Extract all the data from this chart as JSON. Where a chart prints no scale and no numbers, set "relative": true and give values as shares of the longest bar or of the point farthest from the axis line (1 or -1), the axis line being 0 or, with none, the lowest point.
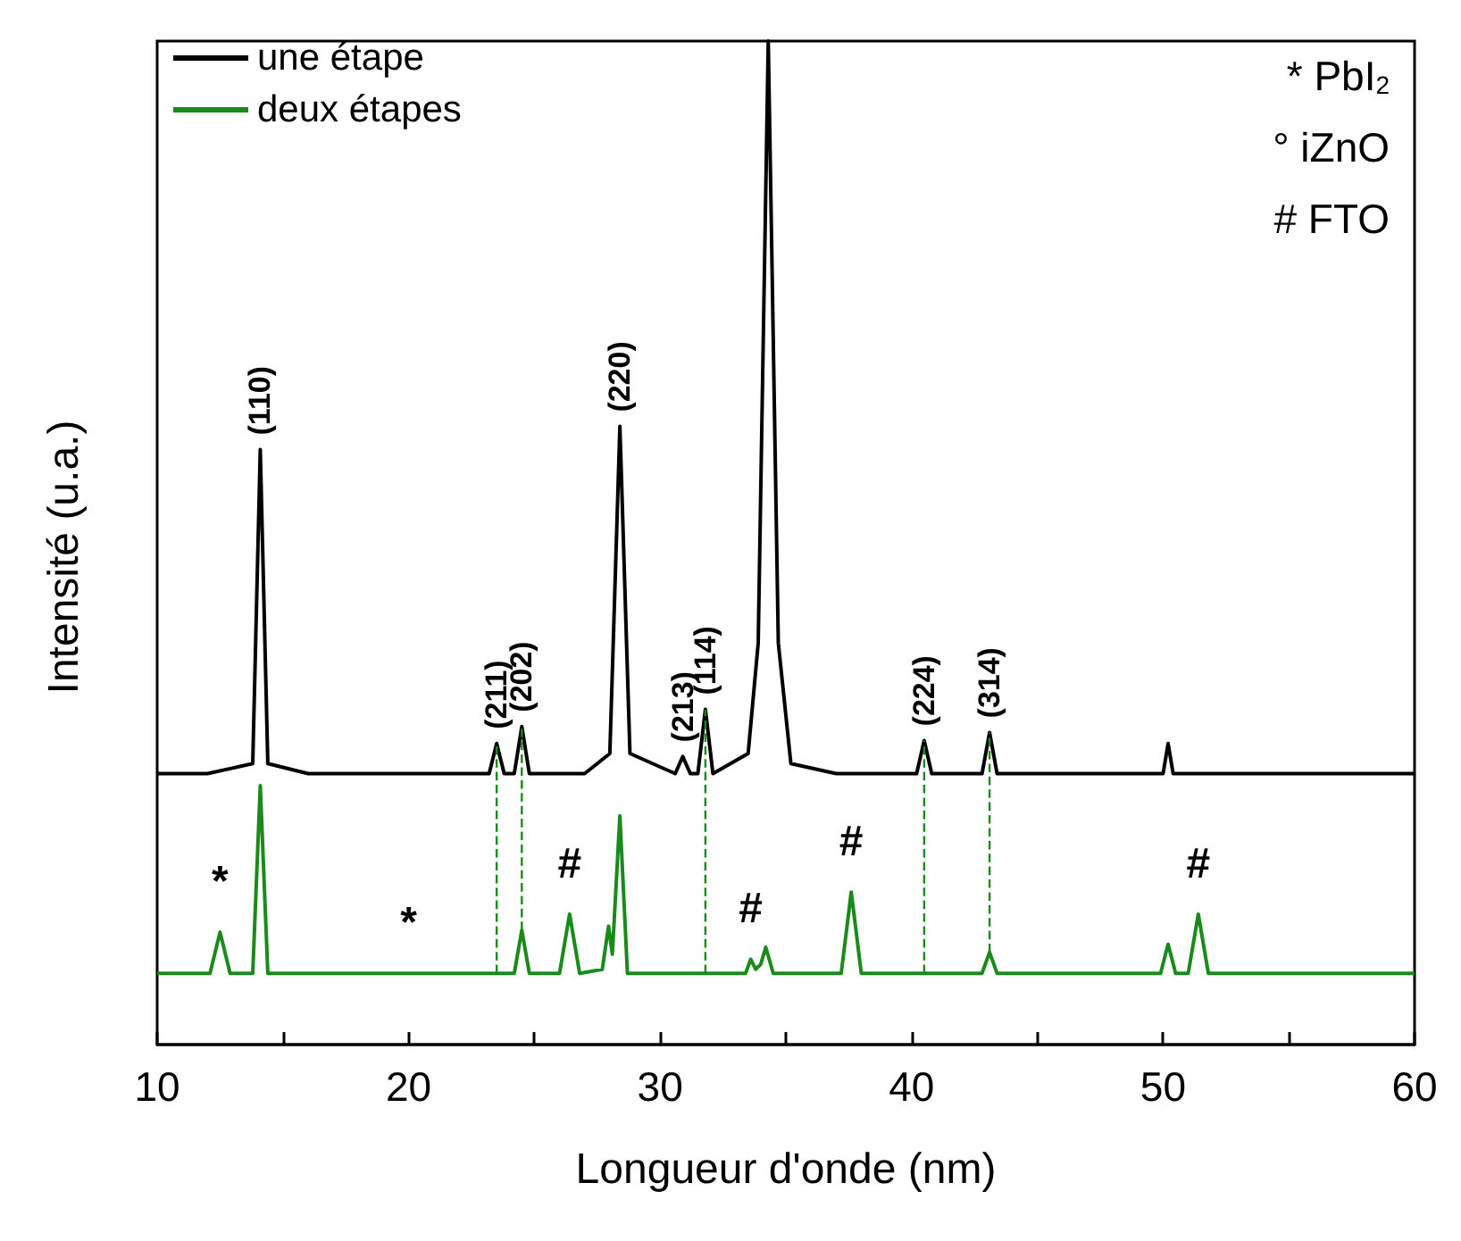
{
  "chart_data": {
    "type": "line",
    "relative": true,
    "xlabel": "Longueur d'onde (nm)",
    "ylabel": "Intensité (u.a.)",
    "xlim": [
      10,
      60
    ],
    "xticks": [
      10,
      {
        "value": 15,
        "label": null
      },
      20,
      {
        "value": 25,
        "label": null
      },
      30,
      {
        "value": 35,
        "label": null
      },
      40,
      {
        "value": 45,
        "label": null
      },
      50,
      {
        "value": 55,
        "label": null
      },
      60
    ],
    "tick_labels": "x",
    "legend": "top left",
    "grid": false,
    "marker": "none",
    "line_style": "solid",
    "series": [
      {
        "name": "une étape",
        "color": "#000000",
        "x": [
          10,
          12,
          13.8,
          14.1,
          14.4,
          16,
          20,
          23.2,
          23.5,
          23.8,
          24.2,
          24.5,
          24.8,
          27,
          28.0,
          28.4,
          28.8,
          30.6,
          30.9,
          31.2,
          31.5,
          31.8,
          32.1,
          33.5,
          33.9,
          34.3,
          34.7,
          35.2,
          37,
          40.2,
          40.5,
          40.8,
          42.8,
          43.1,
          43.4,
          47,
          50,
          50.2,
          50.4,
          55,
          60
        ],
        "values": [
          0.27,
          0.27,
          0.28,
          0.593,
          0.28,
          0.27,
          0.27,
          0.27,
          0.3,
          0.27,
          0.27,
          0.317,
          0.27,
          0.27,
          0.29,
          0.616,
          0.29,
          0.27,
          0.287,
          0.27,
          0.27,
          0.334,
          0.27,
          0.29,
          0.4,
          1,
          0.4,
          0.28,
          0.27,
          0.27,
          0.303,
          0.27,
          0.27,
          0.311,
          0.27,
          0.27,
          0.27,
          0.3,
          0.27,
          0.27,
          0.27
        ]
      },
      {
        "name": "deux étapes",
        "color": "#1a8a1a",
        "x": [
          10,
          12.1,
          12.5,
          12.9,
          13.8,
          14.1,
          14.4,
          18,
          20,
          24.2,
          24.5,
          24.8,
          26.0,
          26.4,
          26.8,
          27.7,
          27.95,
          28.1,
          28.4,
          28.7,
          33.4,
          33.6,
          33.8,
          34.0,
          34.2,
          34.5,
          37.2,
          37.6,
          38.0,
          42.8,
          43.1,
          43.4,
          49.9,
          50.2,
          50.5,
          51.0,
          51.4,
          51.8,
          60
        ],
        "values": [
          0.071,
          0.071,
          0.112,
          0.071,
          0.071,
          0.258,
          0.071,
          0.071,
          0.071,
          0.071,
          0.114,
          0.071,
          0.071,
          0.13,
          0.071,
          0.075,
          0.118,
          0.09,
          0.228,
          0.071,
          0.071,
          0.085,
          0.075,
          0.08,
          0.097,
          0.071,
          0.071,
          0.152,
          0.071,
          0.071,
          0.092,
          0.071,
          0.071,
          0.1,
          0.071,
          0.071,
          0.13,
          0.071,
          0.071
        ]
      }
    ],
    "ref_lines": [
      {
        "axis": "x",
        "value": 23.5,
        "color": "#1a8a1a",
        "line_style": "dashed"
      },
      {
        "axis": "x",
        "value": 24.5,
        "color": "#1a8a1a",
        "line_style": "dashed"
      },
      {
        "axis": "x",
        "value": 31.8,
        "color": "#1a8a1a",
        "line_style": "dashed"
      },
      {
        "axis": "x",
        "value": 40.5,
        "color": "#1a8a1a",
        "line_style": "dashed"
      },
      {
        "axis": "x",
        "value": 43.1,
        "color": "#1a8a1a",
        "line_style": "dashed"
      }
    ],
    "annotations": [
      {
        "text": "(110)",
        "x": 14.1,
        "y": 0.593
      },
      {
        "text": "(211)",
        "x": 23.5,
        "y": 0.3
      },
      {
        "text": "(202)",
        "x": 24.5,
        "y": 0.317
      },
      {
        "text": "(220)",
        "x": 28.4,
        "y": 0.616
      },
      {
        "text": "(213)",
        "x": 30.9,
        "y": 0.287
      },
      {
        "text": "(114)",
        "x": 31.8,
        "y": 0.334
      },
      {
        "text": "(224)",
        "x": 40.5,
        "y": 0.303
      },
      {
        "text": "(314)",
        "x": 43.1,
        "y": 0.311
      },
      {
        "text": "*",
        "x": 12.5,
        "y": 0.112
      },
      {
        "text": "*",
        "x": 20,
        "y": 0.071
      },
      {
        "text": "#",
        "x": 26.4,
        "y": 0.13
      },
      {
        "text": "#",
        "x": 33.6,
        "y": 0.085
      },
      {
        "text": "#",
        "x": 37.6,
        "y": 0.152
      },
      {
        "text": "#",
        "x": 51.4,
        "y": 0.13
      },
      "* PbI$_{2}$",
      "° iZnO",
      "# FTO"
    ]
  }
}
